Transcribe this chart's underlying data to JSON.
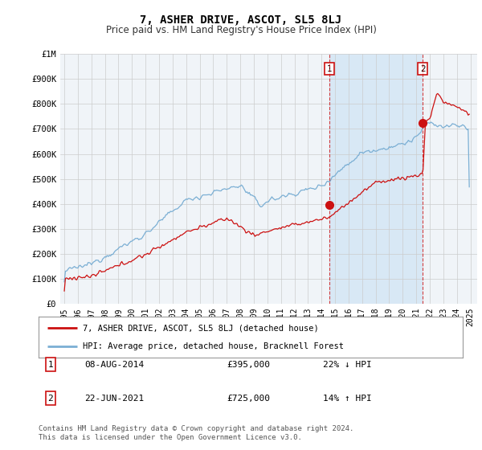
{
  "title": "7, ASHER DRIVE, ASCOT, SL5 8LJ",
  "subtitle": "Price paid vs. HM Land Registry's House Price Index (HPI)",
  "ylim": [
    0,
    1000000
  ],
  "xlim_start": 1994.7,
  "xlim_end": 2025.5,
  "yticks": [
    0,
    100000,
    200000,
    300000,
    400000,
    500000,
    600000,
    700000,
    800000,
    900000,
    1000000
  ],
  "ytick_labels": [
    "£0",
    "£100K",
    "£200K",
    "£300K",
    "£400K",
    "£500K",
    "£600K",
    "£700K",
    "£800K",
    "£900K",
    "£1M"
  ],
  "hpi_color": "#7BAFD4",
  "price_color": "#CC1111",
  "shade_color": "#D8E8F5",
  "transaction1_date": 2014.6,
  "transaction1_price": 395000,
  "transaction1_label": "1",
  "transaction2_date": 2021.47,
  "transaction2_price": 725000,
  "transaction2_label": "2",
  "legend_line1": "7, ASHER DRIVE, ASCOT, SL5 8LJ (detached house)",
  "legend_line2": "HPI: Average price, detached house, Bracknell Forest",
  "table_row1": [
    "1",
    "08-AUG-2014",
    "£395,000",
    "22% ↓ HPI"
  ],
  "table_row2": [
    "2",
    "22-JUN-2021",
    "£725,000",
    "14% ↑ HPI"
  ],
  "footnote": "Contains HM Land Registry data © Crown copyright and database right 2024.\nThis data is licensed under the Open Government Licence v3.0.",
  "background_color": "#F0F4F8",
  "grid_color": "#CCCCCC"
}
